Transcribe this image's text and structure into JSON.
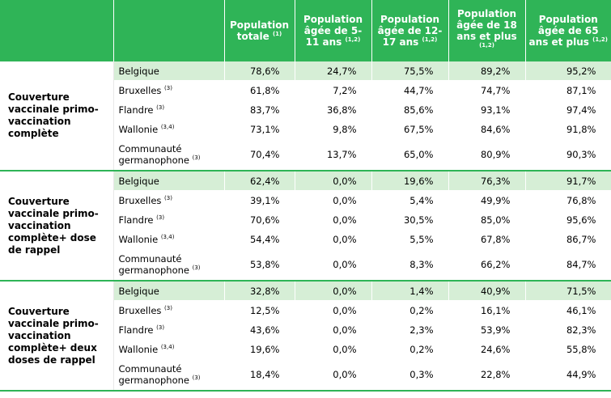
{
  "header": [
    {
      "text": "Population totale",
      "sup": "(1)"
    },
    {
      "text": "Population âgée de 5-11 ans",
      "sup": "(1,2)"
    },
    {
      "text": "Population âgée de 12-17 ans",
      "sup": "(1,2)"
    },
    {
      "text": "Population âgée de 18 ans et plus",
      "sup": "(1,2)"
    },
    {
      "text": "Population âgée de 65 ans et plus",
      "sup": "(1,2)"
    }
  ],
  "groups": [
    {
      "label": "Couverture vaccinale primo-vaccination complète",
      "rows": [
        {
          "region": "Belgique",
          "sup": "",
          "values": [
            "78,6%",
            "24,7%",
            "75,5%",
            "89,2%",
            "95,2%"
          ]
        },
        {
          "region": "Bruxelles",
          "sup": "(3)",
          "values": [
            "61,8%",
            "7,2%",
            "44,7%",
            "74,7%",
            "87,1%"
          ]
        },
        {
          "region": "Flandre",
          "sup": "(3)",
          "values": [
            "83,7%",
            "36,8%",
            "85,6%",
            "93,1%",
            "97,4%"
          ]
        },
        {
          "region": "Wallonie",
          "sup": "(3,4)",
          "values": [
            "73,1%",
            "9,8%",
            "67,5%",
            "84,6%",
            "91,8%"
          ]
        },
        {
          "region": "Communauté germanophone",
          "sup": "(3)",
          "values": [
            "70,4%",
            "13,7%",
            "65,0%",
            "80,9%",
            "90,3%"
          ]
        }
      ]
    },
    {
      "label": "Couverture vaccinale primo-vaccination complète+ dose de rappel",
      "rows": [
        {
          "region": "Belgique",
          "sup": "",
          "values": [
            "62,4%",
            "0,0%",
            "19,6%",
            "76,3%",
            "91,7%"
          ]
        },
        {
          "region": "Bruxelles",
          "sup": "(3)",
          "values": [
            "39,1%",
            "0,0%",
            "5,4%",
            "49,9%",
            "76,8%"
          ]
        },
        {
          "region": "Flandre",
          "sup": "(3)",
          "values": [
            "70,6%",
            "0,0%",
            "30,5%",
            "85,0%",
            "95,6%"
          ]
        },
        {
          "region": "Wallonie",
          "sup": "(3,4)",
          "values": [
            "54,4%",
            "0,0%",
            "5,5%",
            "67,8%",
            "86,7%"
          ]
        },
        {
          "region": "Communauté germanophone",
          "sup": "(3)",
          "values": [
            "53,8%",
            "0,0%",
            "8,3%",
            "66,2%",
            "84,7%"
          ]
        }
      ]
    },
    {
      "label": "Couverture vaccinale primo-vaccination complète+ deux doses de rappel",
      "rows": [
        {
          "region": "Belgique",
          "sup": "",
          "values": [
            "32,8%",
            "0,0%",
            "1,4%",
            "40,9%",
            "71,5%"
          ]
        },
        {
          "region": "Bruxelles",
          "sup": "(3)",
          "values": [
            "12,5%",
            "0,0%",
            "0,2%",
            "16,1%",
            "46,1%"
          ]
        },
        {
          "region": "Flandre",
          "sup": "(3)",
          "values": [
            "43,6%",
            "0,0%",
            "2,3%",
            "53,9%",
            "82,3%"
          ]
        },
        {
          "region": "Wallonie",
          "sup": "(3,4)",
          "values": [
            "19,6%",
            "0,0%",
            "0,2%",
            "24,6%",
            "55,8%"
          ]
        },
        {
          "region": "Communauté germanophone",
          "sup": "(3)",
          "values": [
            "18,4%",
            "0,0%",
            "0,3%",
            "22,8%",
            "44,9%"
          ]
        }
      ]
    }
  ]
}
